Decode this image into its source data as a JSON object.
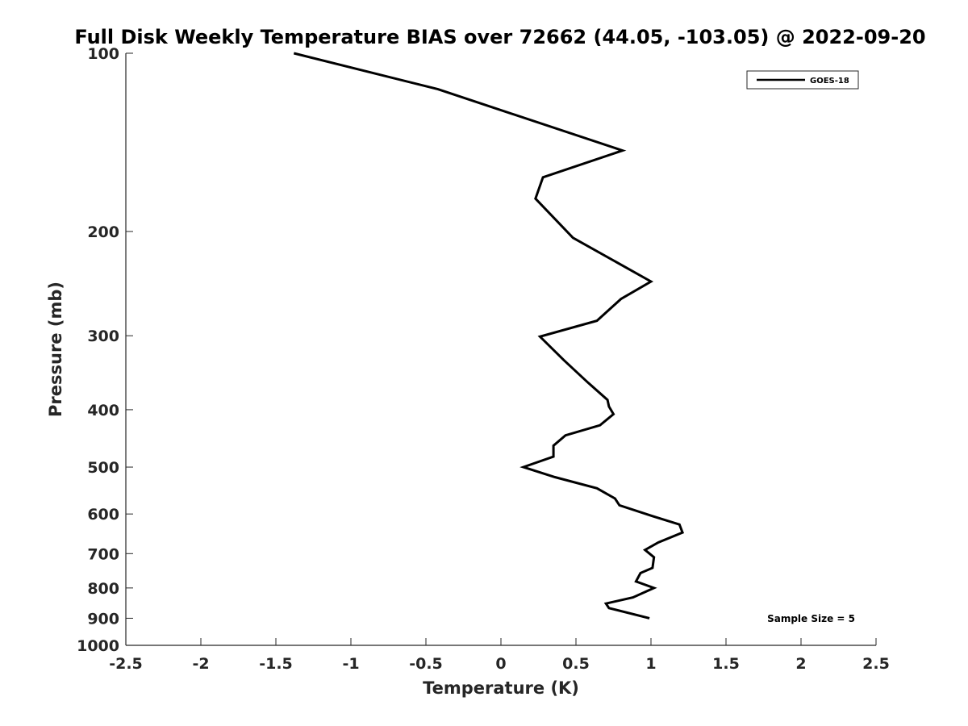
{
  "chart_data": {
    "type": "line",
    "title": "Full Disk Weekly Temperature BIAS over 72662 (44.05, -103.05) @ 2022-09-20",
    "xlabel": "Temperature (K)",
    "ylabel": "Pressure (mb)",
    "xlim": [
      -2.5,
      2.5
    ],
    "ylim": [
      1000,
      100
    ],
    "y_scale": "log",
    "y_reversed": true,
    "grid": false,
    "legend_position": "top-right",
    "x_ticks": [
      "-2.5",
      "-2",
      "-1.5",
      "-1",
      "-0.5",
      "0",
      "0.5",
      "1",
      "1.5",
      "2",
      "2.5"
    ],
    "y_ticks": [
      "100",
      "200",
      "300",
      "400",
      "500",
      "600",
      "700",
      "800",
      "900",
      "1000"
    ],
    "annotation": "Sample Size = 5",
    "series": [
      {
        "name": "GOES-18",
        "color": "#000000",
        "x": [
          -1.38,
          -0.42,
          0.81,
          0.28,
          0.23,
          0.48,
          1.0,
          0.8,
          0.64,
          0.26,
          0.42,
          0.58,
          0.71,
          0.72,
          0.75,
          0.66,
          0.43,
          0.35,
          0.35,
          0.15,
          0.36,
          0.64,
          0.76,
          0.79,
          1.01,
          1.19,
          1.21,
          1.05,
          0.96,
          1.02,
          1.01,
          0.93,
          0.9,
          1.02,
          0.88,
          0.7,
          0.72,
          0.99
        ],
        "y": [
          100,
          115,
          146,
          162,
          176,
          205,
          243,
          260,
          283,
          301,
          330,
          360,
          385,
          395,
          407,
          425,
          442,
          460,
          480,
          500,
          520,
          543,
          565,
          580,
          605,
          625,
          645,
          670,
          690,
          710,
          740,
          755,
          780,
          800,
          830,
          850,
          865,
          900
        ]
      }
    ]
  }
}
